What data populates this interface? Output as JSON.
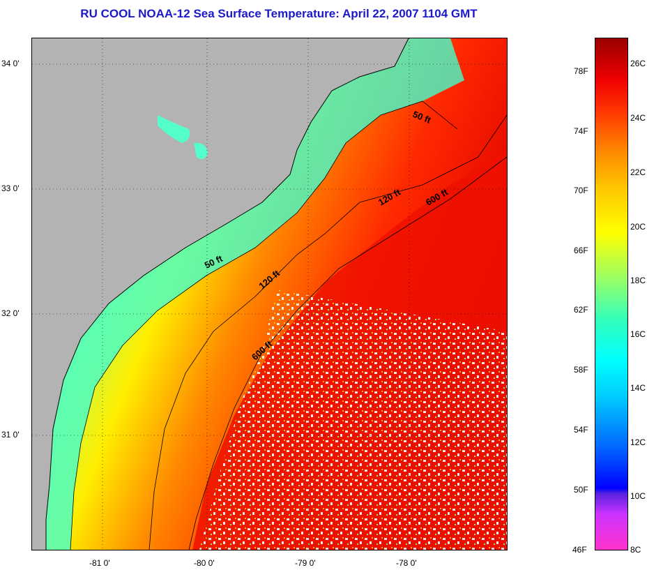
{
  "title": "RU COOL  NOAA-12  Sea Surface Temperature:  April 22, 2007 1104 GMT",
  "map": {
    "lat_labels": [
      "34 0'",
      "33 0'",
      "32 0'",
      "31 0'"
    ],
    "lon_labels": [
      "-81 0'",
      "-80 0'",
      "-79 0'",
      "-78 0'"
    ],
    "depth_labels": [
      "50 ft",
      "50 ft",
      "120 ft",
      "120 ft",
      "600 ft",
      "600 ft"
    ]
  },
  "colorbar": {
    "fahrenheit_labels": [
      "78F",
      "74F",
      "70F",
      "66F",
      "62F",
      "58F",
      "54F",
      "50F",
      "46F"
    ],
    "celsius_labels": [
      "26C",
      "24C",
      "22C",
      "20C",
      "18C",
      "16C",
      "14C",
      "12C",
      "10C",
      "8C"
    ]
  },
  "colors": {
    "title": "#1a1acc",
    "land": "#b3b3b3",
    "warm_water": "#ee2200",
    "cool_water": "#33ffcc"
  }
}
